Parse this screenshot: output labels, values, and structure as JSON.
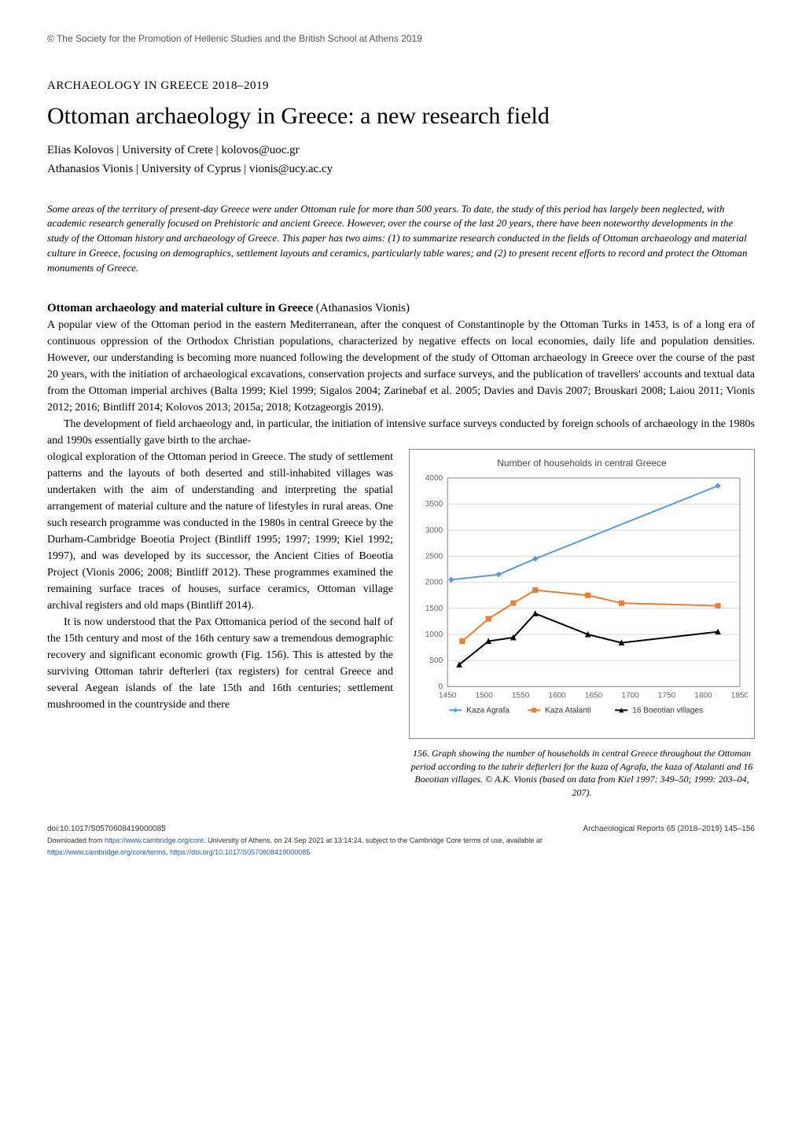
{
  "copyright": "© The Society for the Promotion of Hellenic Studies and the British School at Athens 2019",
  "section_label": "ARCHAEOLOGY IN GREECE 2018–2019",
  "title": "Ottoman archaeology in Greece: a new research field",
  "authors": [
    {
      "name": "Elias Kolovos",
      "affiliation": "University of Crete",
      "email": "kolovos@uoc.gr"
    },
    {
      "name": "Athanasios Vionis",
      "affiliation": "University of Cyprus",
      "email": "vionis@ucy.ac.cy"
    }
  ],
  "abstract": "Some areas of the territory of present-day Greece were under Ottoman rule for more than 500 years. To date, the study of this period has largely been neglected, with academic research generally focused on Prehistoric and ancient Greece. However, over the course of the last 20 years, there have been noteworthy developments in the study of the Ottoman history and archaeology of Greece. This paper has two aims: (1) to summarize research conducted in the fields of Ottoman archaeology and material culture in Greece, focusing on demographics, settlement layouts and ceramics, particularly table wares; and (2) to present recent efforts to record and protect the Ottoman monuments of Greece.",
  "section1": {
    "heading": "Ottoman archaeology and material culture in Greece",
    "heading_note": "(Athanasios Vionis)",
    "p1": "A popular view of the Ottoman period in the eastern Mediterranean, after the conquest of Constantinople by the Ottoman Turks in 1453, is of a long era of continuous oppression of the Orthodox Christian populations, characterized by negative effects on local economies, daily life and population densities. However, our understanding is becoming more nuanced following the development of the study of Ottoman archaeology in Greece over the course of the past 20 years, with the initiation of archaeological excavations, conservation projects and surface surveys, and the publication of travellers' accounts and textual data from the Ottoman imperial archives (Balta 1999; Kiel 1999; Sigalos 2004; Zarinebaf et al. 2005; Davies and Davis 2007; Brouskari 2008; Laiou 2011; Vionis 2012; 2016; Bintliff 2014; Kolovos 2013; 2015a; 2018; Kotzageorgis 2019).",
    "p2": "The development of field archaeology and, in particular, the initiation of intensive surface surveys conducted by foreign schools of archaeology in the 1980s and 1990s essentially gave birth to the archaeological exploration of the Ottoman period in Greece. The study of settlement patterns and the layouts of both deserted and still-inhabited villages was undertaken with the aim of understanding and interpreting the spatial arrangement of material culture and the nature of lifestyles in rural areas. One such research programme was conducted in the 1980s in central Greece by the Durham-Cambridge Boeotia Project (Bintliff 1995; 1997; 1999; Kiel 1992; 1997), and was developed by its successor, the Ancient Cities of Boeotia Project (Vionis 2006; 2008; Bintliff 2012). These programmes examined the remaining surface traces of houses, surface ceramics, Ottoman village archival registers and old maps (Bintliff 2014).",
    "p2_left_continue": "ological exploration of the Ottoman period in Greece. The study of settlement patterns and the layouts of both deserted and still-inhabited villages was undertaken with the aim of understanding and interpreting the spatial arrangement of material culture and the nature of lifestyles in rural areas. One such research programme was conducted in the 1980s in central Greece by the Durham-Cambridge Boeotia Project (Bintliff 1995; 1997; 1999; Kiel 1992; 1997), and was developed by its successor, the Ancient Cities of Boeotia Project (Vionis 2006; 2008; Bintliff 2012). These programmes examined the remaining surface traces of houses, surface ceramics, Ottoman village archival registers and old maps (Bintliff 2014).",
    "p2_top": "The development of field archaeology and, in particular, the initiation of intensive surface surveys conducted by foreign schools of archaeology in the 1980s and 1990s essentially gave birth to the archae-",
    "p3": "It is now understood that the Pax Ottomanica period of the second half of the 15th century and most of the 16th century saw a tremendous demographic recovery and significant economic growth (Fig. 156). This is attested by the surviving Ottoman tahrir defterleri (tax registers) for central Greece and several Aegean islands of the late 15th and 16th centuries; settlement mushroomed in the countryside and there"
  },
  "chart": {
    "type": "line",
    "title": "Number of households in central Greece",
    "title_fontsize": 12,
    "title_color": "#444444",
    "xlabel": "",
    "ylabel": "",
    "xlim": [
      1450,
      1850
    ],
    "ylim": [
      0,
      4000
    ],
    "xtick_step": 50,
    "ytick_step": 500,
    "xticks": [
      1450,
      1500,
      1550,
      1600,
      1650,
      1700,
      1750,
      1800,
      1850
    ],
    "yticks": [
      0,
      500,
      1000,
      1500,
      2000,
      2500,
      3000,
      3500,
      4000
    ],
    "background_color": "#ffffff",
    "grid_color": "#d9d9d9",
    "axis_color": "#888888",
    "tick_fontsize": 10,
    "tick_color": "#666666",
    "series": [
      {
        "name": "Kaza Agrafa",
        "color": "#5b9bd5",
        "marker": "diamond",
        "marker_size": 6,
        "line_width": 2,
        "x": [
          1455,
          1520,
          1570,
          1820
        ],
        "y": [
          2050,
          2150,
          2450,
          3850
        ]
      },
      {
        "name": "Kaza Atalanti",
        "color": "#ed7d31",
        "marker": "square",
        "marker_size": 6,
        "line_width": 2,
        "x": [
          1470,
          1506,
          1540,
          1570,
          1642,
          1688,
          1820
        ],
        "y": [
          870,
          1300,
          1600,
          1850,
          1750,
          1600,
          1550
        ]
      },
      {
        "name": "16 Boeotian villages",
        "color": "#000000",
        "marker": "triangle",
        "marker_size": 6,
        "line_width": 2,
        "x": [
          1466,
          1506,
          1540,
          1570,
          1642,
          1688,
          1820
        ],
        "y": [
          420,
          870,
          940,
          1400,
          1000,
          840,
          1050
        ]
      }
    ],
    "legend": {
      "position": "bottom",
      "fontsize": 10,
      "items": [
        {
          "label": "Kaza Agrafa",
          "color": "#5b9bd5",
          "marker": "diamond"
        },
        {
          "label": "Kaza Atalanti",
          "color": "#ed7d31",
          "marker": "square"
        },
        {
          "label": "16 Boeotian villages",
          "color": "#000000",
          "marker": "triangle"
        }
      ]
    }
  },
  "caption": "156. Graph showing the number of households in central Greece throughout the Ottoman period according to the tahrir defterleri for the kaza of Agrafa, the kaza of Atalanti and 16 Boeotian villages. © A.K. Vionis (based on data from Kiel 1997: 349–50; 1999: 203–04, 207).",
  "footer": {
    "doi": "doi:10.1017/S0570608419000085",
    "journal": "Archaeological Reports 65 (2018–2019) 145–156",
    "downloaded1": "Downloaded from ",
    "downloaded_link1": "https://www.cambridge.org/core",
    "downloaded2": ". University of Athens, on 24 Sep 2021 at 13:14:24, subject to the Cambridge Core terms of use, available at",
    "terms_link": "https://www.cambridge.org/core/terms",
    "doi_link": "https://doi.org/10.1017/S0570608419000085"
  }
}
